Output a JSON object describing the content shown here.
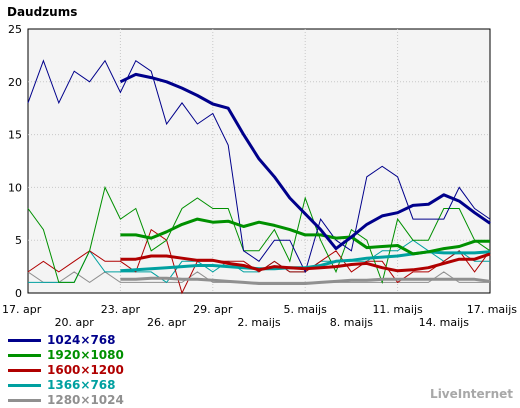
{
  "chart_data": {
    "type": "line",
    "ylabel": "Daudzums",
    "ylim": [
      0,
      25
    ],
    "yticks": [
      0,
      5,
      10,
      15,
      20,
      25
    ],
    "grid": true,
    "x": [
      "17. apr",
      "18. apr",
      "19. apr",
      "20. apr",
      "21. apr",
      "22. apr",
      "23. apr",
      "24. apr",
      "25. apr",
      "26. apr",
      "27. apr",
      "28. apr",
      "29. apr",
      "30. apr",
      "1. maijs",
      "2. maijs",
      "3. maijs",
      "4. maijs",
      "5. maijs",
      "6. maijs",
      "7. maijs",
      "8. maijs",
      "9. maijs",
      "10. maijs",
      "11. maijs",
      "12. maijs",
      "13. maijs",
      "14. maijs",
      "15. maijs",
      "16. maijs",
      "17. maijs"
    ],
    "xtick_labels_row1": [
      "17. apr",
      "23. apr",
      "29. apr",
      "5. maijs",
      "11. maijs",
      "17. maijs"
    ],
    "xtick_labels_row2": [
      "20. apr",
      "26. apr",
      "2. maijs",
      "8. maijs",
      "14. maijs"
    ],
    "legend_position": "bottom-left",
    "series": [
      {
        "name": "1024×768",
        "color": "#00008b",
        "daily": [
          18,
          22,
          18,
          21,
          20,
          22,
          19,
          22,
          21,
          16,
          18,
          16,
          17,
          14,
          4,
          3,
          5,
          5,
          2,
          7,
          5,
          4,
          11,
          12,
          11,
          7,
          7,
          7,
          10,
          8,
          7
        ],
        "smooth": [
          null,
          null,
          null,
          null,
          null,
          null,
          20,
          20.7,
          20.4,
          20,
          19.4,
          18.7,
          17.9,
          17.5,
          15,
          12.7,
          11,
          9,
          7.5,
          6,
          4.2,
          5.3,
          6.5,
          7.3,
          7.6,
          8.3,
          8.4,
          9.3,
          8.7,
          7.6,
          6.6
        ]
      },
      {
        "name": "1920×1080",
        "color": "#009000",
        "daily": [
          8,
          6,
          1,
          1,
          4,
          10,
          7,
          8,
          4,
          5,
          8,
          9,
          8,
          8,
          4,
          4,
          6,
          3,
          9,
          5,
          2,
          6,
          5,
          1,
          7,
          5,
          5,
          8,
          8,
          5,
          4
        ],
        "smooth": [
          null,
          null,
          null,
          null,
          null,
          null,
          5.5,
          5.5,
          5.2,
          5.8,
          6.5,
          7,
          6.7,
          6.8,
          6.3,
          6.7,
          6.4,
          6,
          5.5,
          5.5,
          5.2,
          5.3,
          4.3,
          4.4,
          4.5,
          3.7,
          3.9,
          4.2,
          4.4,
          4.9,
          4.9
        ]
      },
      {
        "name": "1600×1200",
        "color": "#b00000",
        "daily": [
          2,
          3,
          2,
          3,
          4,
          3,
          3,
          2,
          6,
          5,
          0,
          3,
          3,
          3,
          3,
          2,
          3,
          2,
          2,
          3,
          4,
          2,
          3,
          3,
          1,
          2,
          2,
          3,
          4,
          2,
          4
        ]
      },
      {
        "name": "1366×768",
        "color": "#00a0a0",
        "daily": [
          1,
          1,
          1,
          1,
          4,
          2,
          2,
          2,
          2,
          1,
          3,
          3,
          2,
          3,
          2,
          2,
          3,
          2,
          2,
          3,
          3,
          3,
          3,
          4,
          4,
          5,
          4,
          3,
          4,
          3,
          3
        ]
      },
      {
        "name": "1280×1024",
        "color": "#909090",
        "daily": [
          2,
          1,
          1,
          2,
          1,
          2,
          1,
          1,
          1,
          1,
          1,
          2,
          1,
          1,
          1,
          1,
          1,
          1,
          1,
          1,
          1,
          1,
          1,
          1,
          1,
          1,
          1,
          2,
          1,
          1,
          1
        ]
      }
    ],
    "smooth_1600": [
      null,
      null,
      null,
      null,
      null,
      null,
      3.2,
      3.2,
      3.5,
      3.5,
      3.3,
      3.1,
      3.1,
      2.8,
      2.6,
      2.2,
      2.5,
      2.4,
      2.3,
      2.4,
      2.5,
      2.7,
      2.8,
      2.4,
      2.1,
      2.2,
      2.4,
      2.8,
      3.2,
      3.2,
      3.7
    ],
    "smooth_1366": [
      null,
      null,
      null,
      null,
      null,
      null,
      2.1,
      2.2,
      2.3,
      2.4,
      2.5,
      2.6,
      2.6,
      2.5,
      2.4,
      2.3,
      2.3,
      2.4,
      2.4,
      2.6,
      3.0,
      3.1,
      3.3,
      3.4,
      3.5,
      3.7,
      3.9,
      3.8,
      3.8,
      3.8,
      3.9
    ],
    "smooth_1280": [
      null,
      null,
      null,
      null,
      null,
      null,
      1.3,
      1.3,
      1.4,
      1.4,
      1.3,
      1.3,
      1.2,
      1.1,
      1.0,
      0.9,
      0.9,
      0.9,
      0.9,
      1.0,
      1.1,
      1.2,
      1.2,
      1.3,
      1.3,
      1.3,
      1.3,
      1.3,
      1.3,
      1.3,
      1.1
    ]
  },
  "branding": "LiveInternet"
}
